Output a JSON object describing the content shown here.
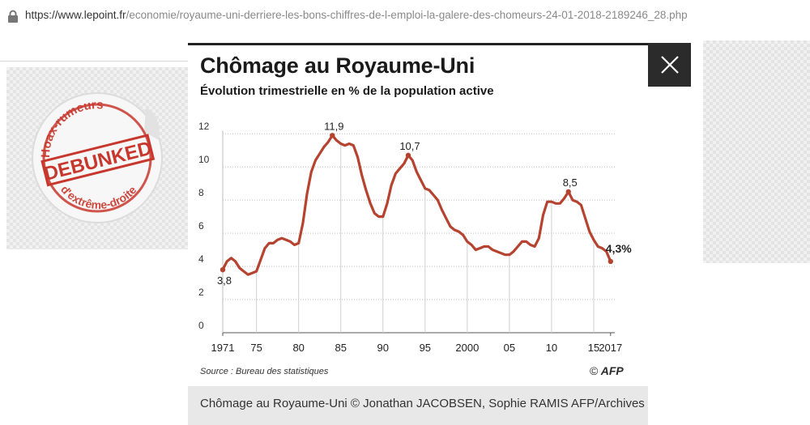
{
  "browser": {
    "url_host": "https://www.lepoint.fr",
    "url_path": "/economie/royaume-uni-derriere-les-bons-chiffres-de-l-emploi-la-galere-des-chomeurs-24-01-2018-2189246_28.php"
  },
  "sticker": {
    "top_text": "Hoax-rumeurs",
    "main_text": "DEBUNKED",
    "bottom_text": "d'extrême-droite"
  },
  "lightbox": {
    "close_icon": "close-icon",
    "source": "Source : Bureau des statistiques",
    "credit_logo": "AFP",
    "credit_symbol": "©",
    "caption": "Chômage au Royaume-Uni © Jonathan JACOBSEN, Sophie RAMIS AFP/Archives"
  },
  "chart_data": {
    "type": "line",
    "title": "Chômage au Royaume-Uni",
    "subtitle": "Évolution trimestrielle en % de la population active",
    "xlabel": "",
    "ylabel": "",
    "x_ticks": [
      {
        "value": 1971,
        "label": "1971"
      },
      {
        "value": 1975,
        "label": "75"
      },
      {
        "value": 1980,
        "label": "80"
      },
      {
        "value": 1985,
        "label": "85"
      },
      {
        "value": 1990,
        "label": "90"
      },
      {
        "value": 1995,
        "label": "95"
      },
      {
        "value": 2000,
        "label": "2000"
      },
      {
        "value": 2005,
        "label": "05"
      },
      {
        "value": 2010,
        "label": "10"
      },
      {
        "value": 2015,
        "label": "15"
      },
      {
        "value": 2017,
        "label": "2017"
      }
    ],
    "y_ticks": [
      0,
      2,
      4,
      6,
      8,
      10,
      12
    ],
    "xlim": [
      1971,
      2017.5
    ],
    "ylim": [
      0,
      12.5
    ],
    "line_color": "#b5432f",
    "series": [
      {
        "points": [
          [
            1971.0,
            3.8
          ],
          [
            1971.5,
            4.3
          ],
          [
            1972.0,
            4.5
          ],
          [
            1972.5,
            4.3
          ],
          [
            1973.0,
            3.9
          ],
          [
            1973.5,
            3.7
          ],
          [
            1974.0,
            3.5
          ],
          [
            1974.5,
            3.6
          ],
          [
            1975.0,
            3.7
          ],
          [
            1975.5,
            4.4
          ],
          [
            1976.0,
            5.1
          ],
          [
            1976.5,
            5.4
          ],
          [
            1977.0,
            5.4
          ],
          [
            1977.5,
            5.6
          ],
          [
            1978.0,
            5.7
          ],
          [
            1978.5,
            5.6
          ],
          [
            1979.0,
            5.5
          ],
          [
            1979.5,
            5.3
          ],
          [
            1980.0,
            5.4
          ],
          [
            1980.5,
            6.6
          ],
          [
            1981.0,
            8.4
          ],
          [
            1981.5,
            9.7
          ],
          [
            1982.0,
            10.4
          ],
          [
            1982.5,
            10.8
          ],
          [
            1983.0,
            11.2
          ],
          [
            1983.5,
            11.5
          ],
          [
            1984.0,
            11.9
          ],
          [
            1984.5,
            11.6
          ],
          [
            1985.0,
            11.4
          ],
          [
            1985.5,
            11.3
          ],
          [
            1986.0,
            11.4
          ],
          [
            1986.5,
            11.3
          ],
          [
            1987.0,
            10.6
          ],
          [
            1987.5,
            9.5
          ],
          [
            1988.0,
            8.6
          ],
          [
            1988.5,
            7.8
          ],
          [
            1989.0,
            7.2
          ],
          [
            1989.5,
            7.0
          ],
          [
            1990.0,
            7.0
          ],
          [
            1990.5,
            7.8
          ],
          [
            1991.0,
            8.9
          ],
          [
            1991.5,
            9.6
          ],
          [
            1992.0,
            9.9
          ],
          [
            1992.5,
            10.2
          ],
          [
            1993.0,
            10.7
          ],
          [
            1993.5,
            10.4
          ],
          [
            1994.0,
            9.7
          ],
          [
            1994.5,
            9.2
          ],
          [
            1995.0,
            8.7
          ],
          [
            1995.5,
            8.6
          ],
          [
            1996.0,
            8.3
          ],
          [
            1996.5,
            8.0
          ],
          [
            1997.0,
            7.4
          ],
          [
            1997.5,
            6.9
          ],
          [
            1998.0,
            6.4
          ],
          [
            1998.5,
            6.2
          ],
          [
            1999.0,
            6.1
          ],
          [
            1999.5,
            5.9
          ],
          [
            2000.0,
            5.5
          ],
          [
            2000.5,
            5.3
          ],
          [
            2001.0,
            5.0
          ],
          [
            2001.5,
            5.1
          ],
          [
            2002.0,
            5.2
          ],
          [
            2002.5,
            5.2
          ],
          [
            2003.0,
            5.0
          ],
          [
            2003.5,
            4.9
          ],
          [
            2004.0,
            4.8
          ],
          [
            2004.5,
            4.7
          ],
          [
            2005.0,
            4.7
          ],
          [
            2005.5,
            4.9
          ],
          [
            2006.0,
            5.2
          ],
          [
            2006.5,
            5.5
          ],
          [
            2007.0,
            5.5
          ],
          [
            2007.5,
            5.3
          ],
          [
            2008.0,
            5.2
          ],
          [
            2008.5,
            5.7
          ],
          [
            2009.0,
            7.1
          ],
          [
            2009.5,
            7.9
          ],
          [
            2010.0,
            7.9
          ],
          [
            2010.5,
            7.8
          ],
          [
            2011.0,
            7.8
          ],
          [
            2011.5,
            8.1
          ],
          [
            2012.0,
            8.5
          ],
          [
            2012.5,
            8.0
          ],
          [
            2013.0,
            7.9
          ],
          [
            2013.5,
            7.7
          ],
          [
            2014.0,
            6.9
          ],
          [
            2014.5,
            6.1
          ],
          [
            2015.0,
            5.6
          ],
          [
            2015.5,
            5.2
          ],
          [
            2016.0,
            5.1
          ],
          [
            2016.5,
            4.9
          ],
          [
            2017.0,
            4.3
          ]
        ]
      }
    ],
    "annotations": [
      {
        "x": 1971.0,
        "y": 3.8,
        "text": "3,8",
        "pos": "below"
      },
      {
        "x": 1984.0,
        "y": 11.9,
        "text": "11,9",
        "pos": "above"
      },
      {
        "x": 1993.0,
        "y": 10.7,
        "text": "10,7",
        "pos": "above"
      },
      {
        "x": 2012.0,
        "y": 8.5,
        "text": "8,5",
        "pos": "above"
      },
      {
        "x": 2017.0,
        "y": 4.3,
        "text": "4,3%",
        "pos": "right"
      }
    ],
    "grid": "horizontal dotted",
    "legend": "none"
  }
}
